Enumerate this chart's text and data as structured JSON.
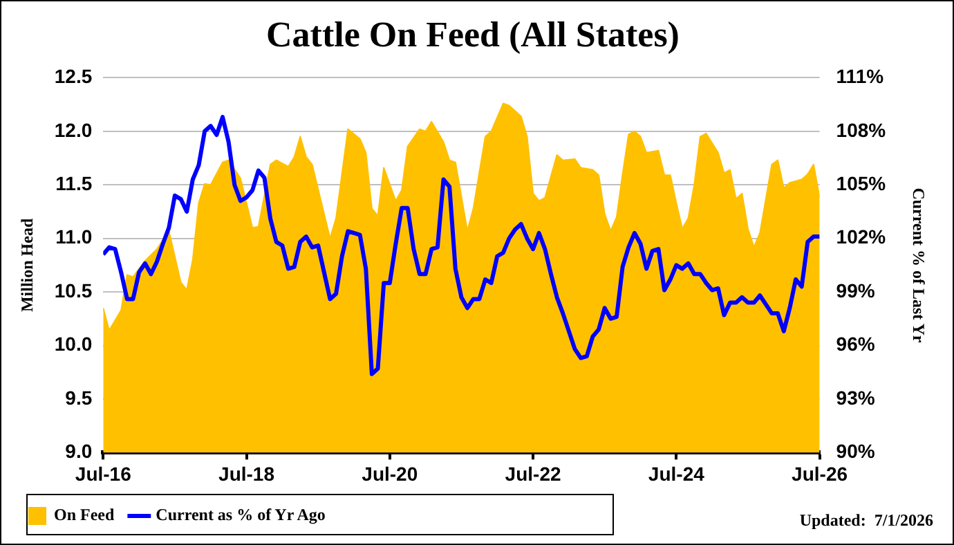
{
  "chart_data": {
    "type": "line",
    "title": "Cattle On Feed (All States)",
    "ylabel": "Million Head",
    "y2label": "Current % of Last Yr",
    "annotations": [
      "Updated:  7/1/2026"
    ],
    "legend": "bottom",
    "grid": "y",
    "x": [
      "2016-07",
      "2016-08",
      "2016-09",
      "2016-10",
      "2016-11",
      "2016-12",
      "2017-01",
      "2017-02",
      "2017-03",
      "2017-04",
      "2017-05",
      "2017-06",
      "2017-07",
      "2017-08",
      "2017-09",
      "2017-10",
      "2017-11",
      "2017-12",
      "2018-01",
      "2018-02",
      "2018-03",
      "2018-04",
      "2018-05",
      "2018-06",
      "2018-07",
      "2018-08",
      "2018-09",
      "2018-10",
      "2018-11",
      "2018-12",
      "2019-01",
      "2019-02",
      "2019-03",
      "2019-04",
      "2019-05",
      "2019-06",
      "2019-07",
      "2019-08",
      "2019-09",
      "2019-10",
      "2019-11",
      "2019-12",
      "2020-01",
      "2020-02",
      "2020-03",
      "2020-04",
      "2020-05",
      "2020-06",
      "2020-07",
      "2020-08",
      "2020-09",
      "2020-10",
      "2020-11",
      "2020-12",
      "2021-01",
      "2021-02",
      "2021-03",
      "2021-04",
      "2021-05",
      "2021-06",
      "2021-07",
      "2021-08",
      "2021-09",
      "2021-10",
      "2021-11",
      "2021-12",
      "2022-01",
      "2022-02",
      "2022-03",
      "2022-04",
      "2022-05",
      "2022-06",
      "2022-07",
      "2022-08",
      "2022-09",
      "2022-10",
      "2022-11",
      "2022-12",
      "2023-01",
      "2023-02",
      "2023-03",
      "2023-04",
      "2023-05",
      "2023-06",
      "2023-07",
      "2023-08",
      "2023-09",
      "2023-10",
      "2023-11",
      "2023-12",
      "2024-01",
      "2024-02",
      "2024-03",
      "2024-04",
      "2024-05",
      "2024-06",
      "2024-07",
      "2024-08",
      "2024-09",
      "2024-10",
      "2024-11",
      "2024-12",
      "2025-01",
      "2025-02",
      "2025-03",
      "2025-04",
      "2025-05",
      "2025-06",
      "2025-07",
      "2025-08",
      "2025-09",
      "2025-10",
      "2025-11",
      "2025-12",
      "2026-01",
      "2026-02",
      "2026-03",
      "2026-04",
      "2026-05",
      "2026-06",
      "2026-07"
    ],
    "xlim": [
      "2016-07",
      "2026-07"
    ],
    "xticks": [
      {
        "value": "2016-07",
        "label": "Jul-16"
      },
      {
        "value": "2018-07",
        "label": "Jul-18"
      },
      {
        "value": "2020-07",
        "label": "Jul-20"
      },
      {
        "value": "2022-07",
        "label": "Jul-22"
      },
      {
        "value": "2024-07",
        "label": "Jul-24"
      },
      {
        "value": "2026-07",
        "label": "Jul-26"
      }
    ],
    "ylim": [
      9,
      12.5
    ],
    "yticks": [
      {
        "value": 9,
        "label": "9.0"
      },
      9.5,
      {
        "value": 10,
        "label": "10.0"
      },
      10.5,
      {
        "value": 11,
        "label": "11.0"
      },
      11.5,
      {
        "value": 12,
        "label": "12.0"
      },
      12.5
    ],
    "y2lim": [
      90,
      111
    ],
    "y2ticks": [
      {
        "value": 90,
        "label": "90%"
      },
      {
        "value": 93,
        "label": "93%"
      },
      {
        "value": 96,
        "label": "96%"
      },
      {
        "value": 99,
        "label": "99%"
      },
      {
        "value": 102,
        "label": "102%"
      },
      {
        "value": 105,
        "label": "105%"
      },
      {
        "value": 108,
        "label": "108%"
      },
      {
        "value": 111,
        "label": "111%"
      }
    ],
    "series": [
      {
        "name": "On Feed",
        "type": "area",
        "color": "#ffc000",
        "x": [
          "2016-07",
          "2016-08",
          "2016-10",
          "2016-11",
          "2016-12",
          "2017-02",
          "2017-04",
          "2017-06",
          "2017-08",
          "2017-09",
          "2017-10",
          "2017-11",
          "2017-12",
          "2018-01",
          "2018-03",
          "2018-04",
          "2018-06",
          "2018-08",
          "2018-09",
          "2018-11",
          "2018-12",
          "2019-02",
          "2019-03",
          "2019-04",
          "2019-05",
          "2019-06",
          "2019-09",
          "2019-10",
          "2019-12",
          "2020-02",
          "2020-03",
          "2020-04",
          "2020-05",
          "2020-06",
          "2020-08",
          "2020-09",
          "2020-10",
          "2020-12",
          "2021-01",
          "2021-02",
          "2021-04",
          "2021-05",
          "2021-06",
          "2021-08",
          "2021-09",
          "2021-11",
          "2021-12",
          "2022-02",
          "2022-03",
          "2022-05",
          "2022-06",
          "2022-07",
          "2022-08",
          "2022-09",
          "2022-11",
          "2022-12",
          "2023-02",
          "2023-03",
          "2023-05",
          "2023-06",
          "2023-07",
          "2023-08",
          "2023-09",
          "2023-10",
          "2023-11",
          "2023-12",
          "2024-01",
          "2024-02",
          "2024-04",
          "2024-05",
          "2024-06",
          "2024-07",
          "2024-08",
          "2024-09",
          "2024-10",
          "2024-11",
          "2024-12",
          "2025-02",
          "2025-03",
          "2025-04",
          "2025-05",
          "2025-06",
          "2025-07",
          "2025-08",
          "2025-09",
          "2025-11",
          "2025-12",
          "2026-01",
          "2026-02",
          "2026-04",
          "2026-05",
          "2026-06",
          "2026-07"
        ],
        "values": [
          10.35,
          10.14,
          10.33,
          10.66,
          10.64,
          10.79,
          10.9,
          11.07,
          10.59,
          10.52,
          10.8,
          11.33,
          11.51,
          11.5,
          11.71,
          11.73,
          11.56,
          11.1,
          11.11,
          11.69,
          11.73,
          11.67,
          11.76,
          11.95,
          11.76,
          11.69,
          11.0,
          11.19,
          12.02,
          11.93,
          11.8,
          11.28,
          11.21,
          11.66,
          11.35,
          11.45,
          11.86,
          12.02,
          12.0,
          12.09,
          11.9,
          11.73,
          11.71,
          11.07,
          11.28,
          11.95,
          12.0,
          12.26,
          12.24,
          12.14,
          11.95,
          11.42,
          11.35,
          11.38,
          11.78,
          11.73,
          11.74,
          11.66,
          11.64,
          11.59,
          11.23,
          11.07,
          11.2,
          11.6,
          11.97,
          12.0,
          11.95,
          11.8,
          11.82,
          11.59,
          11.59,
          11.33,
          11.09,
          11.19,
          11.5,
          11.95,
          11.98,
          11.8,
          11.61,
          11.64,
          11.37,
          11.42,
          11.09,
          10.92,
          11.05,
          11.69,
          11.73,
          11.47,
          11.52,
          11.55,
          11.6,
          11.69,
          11.38
        ]
      },
      {
        "name": "Current as % of Yr Ago",
        "type": "line",
        "axis": "y2",
        "color": "#0000ff",
        "values": [
          101.1,
          101.5,
          101.4,
          100.1,
          98.6,
          98.6,
          100.1,
          100.6,
          100.0,
          100.7,
          101.7,
          102.6,
          104.4,
          104.2,
          103.5,
          105.3,
          106.1,
          108.0,
          108.3,
          107.8,
          108.8,
          107.4,
          105.0,
          104.1,
          104.3,
          104.7,
          105.8,
          105.4,
          103.1,
          101.8,
          101.6,
          100.3,
          100.4,
          101.8,
          102.1,
          101.5,
          101.6,
          100.1,
          98.6,
          98.9,
          101.0,
          102.4,
          102.3,
          102.2,
          100.3,
          94.4,
          94.7,
          99.5,
          99.5,
          101.7,
          103.7,
          103.7,
          101.4,
          100.0,
          100.0,
          101.4,
          101.5,
          105.3,
          104.9,
          100.3,
          98.7,
          98.1,
          98.6,
          98.6,
          99.7,
          99.5,
          101.0,
          101.2,
          102.0,
          102.5,
          102.8,
          102.0,
          101.4,
          102.3,
          101.4,
          100.0,
          98.7,
          97.8,
          96.8,
          95.8,
          95.3,
          95.4,
          96.5,
          96.9,
          98.1,
          97.5,
          97.6,
          100.4,
          101.5,
          102.3,
          101.7,
          100.3,
          101.3,
          101.4,
          99.1,
          99.7,
          100.5,
          100.3,
          100.6,
          100.0,
          100.0,
          99.5,
          99.1,
          99.2,
          97.7,
          98.4,
          98.4,
          98.7,
          98.4,
          98.4,
          98.8,
          98.3,
          97.8,
          97.8,
          96.8,
          98.1,
          99.7,
          99.3,
          101.8,
          102.1,
          102.1
        ]
      }
    ]
  }
}
